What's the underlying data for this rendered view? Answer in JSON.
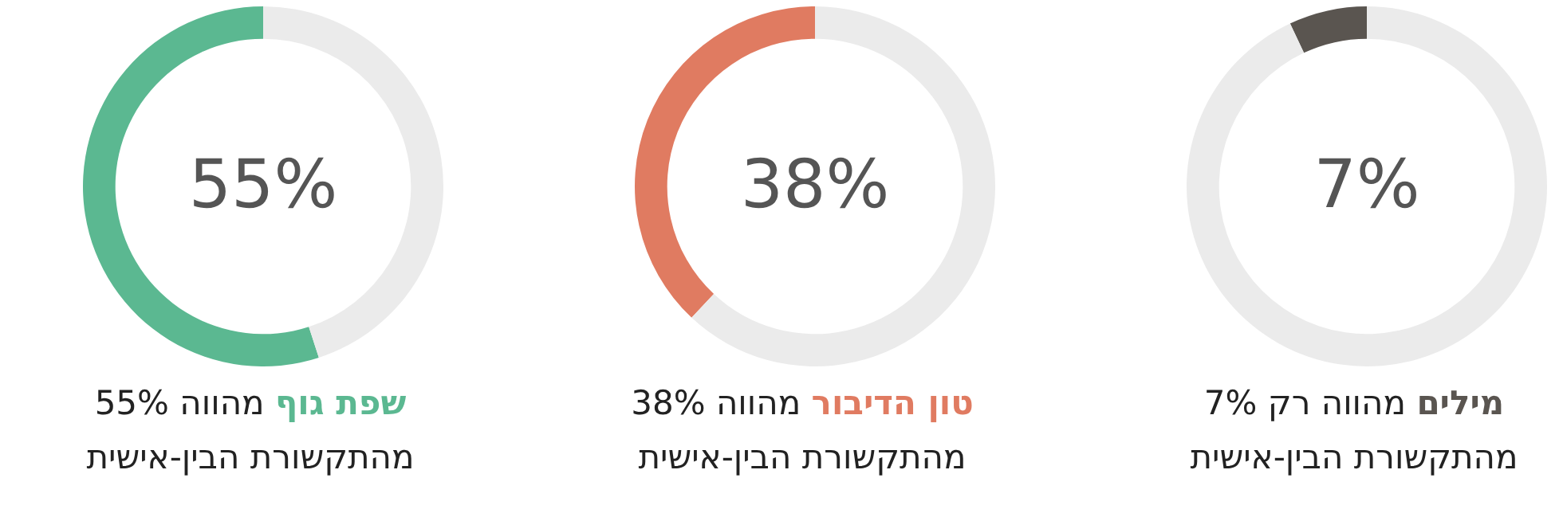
{
  "chart_data": [
    {
      "type": "donut",
      "categories": [
        null,
        null
      ],
      "values": [
        55,
        45
      ],
      "colors": [
        "#5bb891",
        "#ebebeb"
      ],
      "value_labels": [
        "55%",
        null
      ],
      "title": "שפת גוף",
      "annotations": [
        "מהווה 55%",
        "מהתקשורת הבין-אישית"
      ]
    },
    {
      "type": "donut",
      "categories": [
        null,
        null
      ],
      "values": [
        38,
        62
      ],
      "colors": [
        "#e07b61",
        "#ebebeb"
      ],
      "value_labels": [
        "38%",
        null
      ],
      "title": "טון הדיבור",
      "annotations": [
        "מהווה 38%",
        "מהתקשורת הבין-אישית"
      ]
    },
    {
      "type": "donut",
      "categories": [
        null,
        null
      ],
      "values": [
        7,
        93
      ],
      "colors": [
        "#5a5550",
        "#ebebeb"
      ],
      "value_labels": [
        "7%",
        null
      ],
      "title": "מילים",
      "annotations": [
        "מהווה רק 7%",
        "מהתקשורת הבין-אישית"
      ]
    }
  ]
}
